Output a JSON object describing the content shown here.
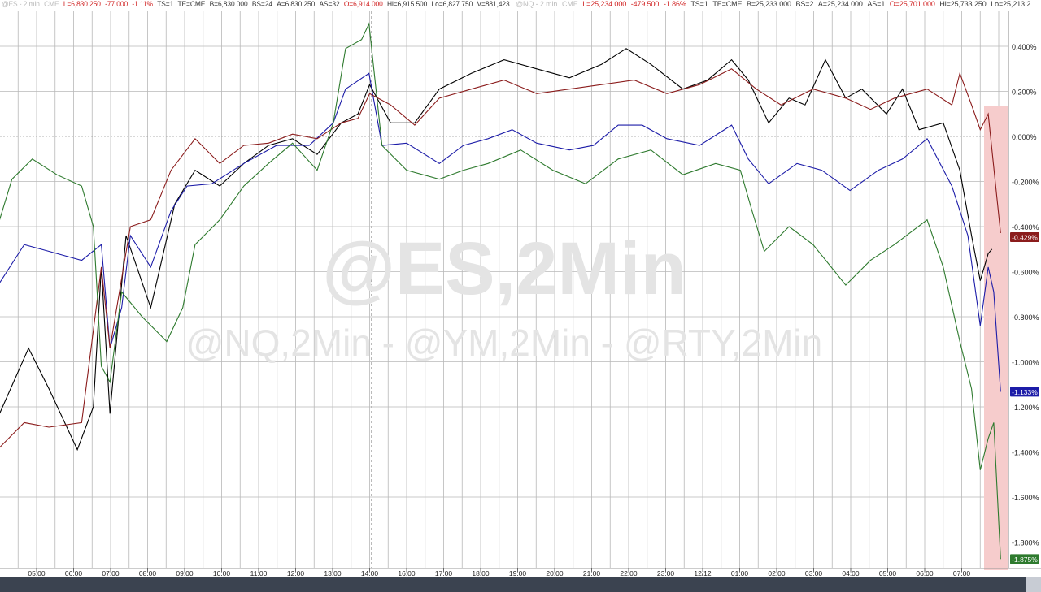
{
  "headers": [
    {
      "symbol": "@ES - 2 min",
      "exchange": "CME",
      "last": "L=6,830.250",
      "change": "-77.000",
      "pct": "-1.11%",
      "ts": "TS=1",
      "te": "TE=CME",
      "bid": "B=6,830.000",
      "bs": "BS=24",
      "ask": "A=6,830.250",
      "as": "AS=32",
      "open": "O=6,914.000",
      "hi": "Hi=6,915.500",
      "lo": "Lo=6,827.750",
      "vol": "V=881,423"
    },
    {
      "symbol": "@NQ - 2 min",
      "exchange": "CME",
      "last": "L=25,234.000",
      "change": "-479.500",
      "pct": "-1.86%",
      "ts": "TS=1",
      "te": "TE=CME",
      "bid": "B=25,233.000",
      "bs": "BS=2",
      "ask": "A=25,234.000",
      "as": "AS=1",
      "open": "O=25,701.000",
      "hi": "Hi=25,733.250",
      "lo": "Lo=25,213.2...",
      "vol": ""
    }
  ],
  "watermark": {
    "main": "@ES,2Min",
    "sub": "@NQ,2Min - @YM,2Min - @RTY,2Min"
  },
  "chart_data": {
    "type": "line",
    "grid": true,
    "y_axis_side": "right",
    "ylim": [
      -1.9,
      0.5
    ],
    "y_ticks": [
      "0.400%",
      "0.200%",
      "0.000%",
      "-0.200%",
      "-0.400%",
      "-0.600%",
      "-0.800%",
      "-1.000%",
      "-1.200%",
      "-1.400%",
      "-1.600%",
      "-1.800%"
    ],
    "x_ticks": [
      "05:00",
      "06:00",
      "07:00",
      "08:00",
      "09:00",
      "10:00",
      "11:00",
      "12:00",
      "13:00",
      "14:00",
      "16:00",
      "17:00",
      "18:00",
      "19:00",
      "20:00",
      "21:00",
      "22:00",
      "23:00",
      "12/12",
      "01:00",
      "02:00",
      "03:00",
      "04:00",
      "05:00",
      "06:00",
      "07:00"
    ],
    "highlight_color": "#f6cccc",
    "series": [
      {
        "color": "#000000",
        "last_label": "",
        "points": [
          [
            "12/11 04:00",
            -1.23
          ],
          [
            "12/11 04:47",
            -0.94
          ],
          [
            "12/11 05:20",
            -1.12
          ],
          [
            "12/11 06:06",
            -1.39
          ],
          [
            "12/11 06:32",
            -1.2
          ],
          [
            "12/11 06:45",
            -0.58
          ],
          [
            "12/11 06:59",
            -1.23
          ],
          [
            "12/11 07:25",
            -0.44
          ],
          [
            "12/11 08:05",
            -0.76
          ],
          [
            "12/11 08:44",
            -0.3
          ],
          [
            "12/11 09:17",
            -0.15
          ],
          [
            "12/11 09:57",
            -0.22
          ],
          [
            "12/11 10:36",
            -0.12
          ],
          [
            "12/11 11:16",
            -0.04
          ],
          [
            "12/11 11:55",
            -0.01
          ],
          [
            "12/11 12:35",
            -0.08
          ],
          [
            "12/11 13:14",
            0.06
          ],
          [
            "12/11 13:41",
            0.1
          ],
          [
            "12/11 14:00",
            0.23
          ],
          [
            "12/11 15:34",
            0.06
          ],
          [
            "12/11 16:13",
            0.06
          ],
          [
            "12/11 16:53",
            0.21
          ],
          [
            "12/11 17:45",
            0.28
          ],
          [
            "12/11 18:38",
            0.34
          ],
          [
            "12/11 19:31",
            0.3
          ],
          [
            "12/11 20:24",
            0.26
          ],
          [
            "12/11 21:16",
            0.32
          ],
          [
            "12/11 21:56",
            0.39
          ],
          [
            "12/11 22:36",
            0.32
          ],
          [
            "12/11 23:28",
            0.21
          ],
          [
            "12/12 00:08",
            0.25
          ],
          [
            "12/12 00:47",
            0.34
          ],
          [
            "12/12 01:14",
            0.25
          ],
          [
            "12/12 01:47",
            0.06
          ],
          [
            "12/12 02:20",
            0.17
          ],
          [
            "12/12 02:46",
            0.14
          ],
          [
            "12/12 03:19",
            0.34
          ],
          [
            "12/12 03:52",
            0.17
          ],
          [
            "12/12 04:18",
            0.21
          ],
          [
            "12/12 04:58",
            0.1
          ],
          [
            "12/12 05:24",
            0.21
          ],
          [
            "12/12 05:51",
            0.03
          ],
          [
            "12/12 06:30",
            0.06
          ],
          [
            "12/12 06:57",
            -0.15
          ],
          [
            "12/12 07:16",
            -0.44
          ],
          [
            "12/12 07:30",
            -0.64
          ],
          [
            "12/12 07:43",
            -0.52
          ],
          [
            "12/12 07:49",
            -0.5
          ]
        ]
      },
      {
        "color": "#1c1ca8",
        "last_label": "-1.133%",
        "points": [
          [
            "12/11 04:00",
            -0.65
          ],
          [
            "12/11 04:40",
            -0.48
          ],
          [
            "12/11 05:20",
            -0.51
          ],
          [
            "12/11 06:13",
            -0.55
          ],
          [
            "12/11 06:45",
            -0.48
          ],
          [
            "12/11 06:59",
            -0.94
          ],
          [
            "12/11 07:18",
            -0.76
          ],
          [
            "12/11 07:32",
            -0.44
          ],
          [
            "12/11 08:05",
            -0.58
          ],
          [
            "12/11 08:38",
            -0.33
          ],
          [
            "12/11 09:04",
            -0.22
          ],
          [
            "12/11 09:44",
            -0.21
          ],
          [
            "12/11 10:36",
            -0.12
          ],
          [
            "12/11 11:29",
            -0.04
          ],
          [
            "12/11 12:22",
            -0.04
          ],
          [
            "12/11 13:01",
            0.06
          ],
          [
            "12/11 13:21",
            0.21
          ],
          [
            "12/11 13:59",
            0.28
          ],
          [
            "12/11 15:20",
            -0.04
          ],
          [
            "12/11 16:00",
            -0.03
          ],
          [
            "12/11 16:53",
            -0.12
          ],
          [
            "12/11 17:32",
            -0.04
          ],
          [
            "12/11 18:12",
            -0.01
          ],
          [
            "12/11 18:51",
            0.03
          ],
          [
            "12/11 19:31",
            -0.03
          ],
          [
            "12/11 20:24",
            -0.06
          ],
          [
            "12/11 21:03",
            -0.04
          ],
          [
            "12/11 21:43",
            0.05
          ],
          [
            "12/11 22:22",
            0.05
          ],
          [
            "12/11 23:02",
            -0.01
          ],
          [
            "12/11 23:55",
            -0.04
          ],
          [
            "12/12 00:47",
            0.05
          ],
          [
            "12/12 01:14",
            -0.1
          ],
          [
            "12/12 01:47",
            -0.21
          ],
          [
            "12/12 02:33",
            -0.12
          ],
          [
            "12/12 03:13",
            -0.15
          ],
          [
            "12/12 03:59",
            -0.24
          ],
          [
            "12/12 04:45",
            -0.15
          ],
          [
            "12/12 05:24",
            -0.1
          ],
          [
            "12/12 06:04",
            -0.01
          ],
          [
            "12/12 06:44",
            -0.22
          ],
          [
            "12/12 07:10",
            -0.44
          ],
          [
            "12/12 07:30",
            -0.84
          ],
          [
            "12/12 07:43",
            -0.58
          ],
          [
            "12/12 07:52",
            -0.69
          ],
          [
            "12/12 08:03",
            -1.133
          ]
        ]
      },
      {
        "color": "#8b1c1c",
        "last_label": "-0.429%",
        "points": [
          [
            "12/11 04:00",
            -1.38
          ],
          [
            "12/11 04:40",
            -1.27
          ],
          [
            "12/11 05:20",
            -1.29
          ],
          [
            "12/11 06:13",
            -1.27
          ],
          [
            "12/11 06:45",
            -0.58
          ],
          [
            "12/11 06:59",
            -0.94
          ],
          [
            "12/11 07:32",
            -0.4
          ],
          [
            "12/11 08:05",
            -0.37
          ],
          [
            "12/11 08:38",
            -0.15
          ],
          [
            "12/11 09:17",
            -0.01
          ],
          [
            "12/11 09:57",
            -0.12
          ],
          [
            "12/11 10:36",
            -0.04
          ],
          [
            "12/11 11:16",
            -0.03
          ],
          [
            "12/11 11:55",
            0.01
          ],
          [
            "12/11 12:35",
            -0.01
          ],
          [
            "12/11 13:14",
            0.06
          ],
          [
            "12/11 13:41",
            0.08
          ],
          [
            "12/11 14:00",
            0.19
          ],
          [
            "12/11 15:34",
            0.14
          ],
          [
            "12/11 16:13",
            0.05
          ],
          [
            "12/11 16:53",
            0.17
          ],
          [
            "12/11 17:45",
            0.21
          ],
          [
            "12/11 18:38",
            0.25
          ],
          [
            "12/11 19:31",
            0.19
          ],
          [
            "12/11 20:24",
            0.21
          ],
          [
            "12/11 21:16",
            0.23
          ],
          [
            "12/11 22:09",
            0.25
          ],
          [
            "12/11 23:02",
            0.19
          ],
          [
            "12/11 23:55",
            0.23
          ],
          [
            "12/12 00:47",
            0.3
          ],
          [
            "12/12 01:27",
            0.21
          ],
          [
            "12/12 02:07",
            0.14
          ],
          [
            "12/12 02:59",
            0.21
          ],
          [
            "12/12 03:52",
            0.17
          ],
          [
            "12/12 04:32",
            0.12
          ],
          [
            "12/12 05:11",
            0.17
          ],
          [
            "12/12 06:04",
            0.21
          ],
          [
            "12/12 06:44",
            0.14
          ],
          [
            "12/12 06:57",
            0.28
          ],
          [
            "12/12 07:16",
            0.14
          ],
          [
            "12/12 07:30",
            0.03
          ],
          [
            "12/12 07:43",
            0.1
          ],
          [
            "12/12 08:03",
            -0.429
          ]
        ]
      },
      {
        "color": "#2e7a2e",
        "last_label": "-1.875%",
        "points": [
          [
            "12/11 04:00",
            -0.37
          ],
          [
            "12/11 04:20",
            -0.19
          ],
          [
            "12/11 04:53",
            -0.1
          ],
          [
            "12/11 05:33",
            -0.17
          ],
          [
            "12/11 06:13",
            -0.22
          ],
          [
            "12/11 06:32",
            -0.4
          ],
          [
            "12/11 06:45",
            -1.02
          ],
          [
            "12/11 06:59",
            -1.09
          ],
          [
            "12/11 07:18",
            -0.69
          ],
          [
            "12/11 07:51",
            -0.8
          ],
          [
            "12/11 08:31",
            -0.91
          ],
          [
            "12/11 08:57",
            -0.76
          ],
          [
            "12/11 09:17",
            -0.48
          ],
          [
            "12/11 09:57",
            -0.37
          ],
          [
            "12/11 10:36",
            -0.22
          ],
          [
            "12/11 11:16",
            -0.12
          ],
          [
            "12/11 11:55",
            -0.03
          ],
          [
            "12/11 12:35",
            -0.15
          ],
          [
            "12/11 13:01",
            0.06
          ],
          [
            "12/11 13:21",
            0.39
          ],
          [
            "12/11 13:47",
            0.43
          ],
          [
            "12/11 13:59",
            0.5
          ],
          [
            "12/11 15:20",
            -0.04
          ],
          [
            "12/11 16:00",
            -0.15
          ],
          [
            "12/11 16:53",
            -0.19
          ],
          [
            "12/11 17:32",
            -0.15
          ],
          [
            "12/11 18:12",
            -0.12
          ],
          [
            "12/11 19:05",
            -0.06
          ],
          [
            "12/11 19:57",
            -0.15
          ],
          [
            "12/11 20:50",
            -0.21
          ],
          [
            "12/11 21:43",
            -0.1
          ],
          [
            "12/11 22:36",
            -0.06
          ],
          [
            "12/11 23:28",
            -0.17
          ],
          [
            "12/12 00:21",
            -0.12
          ],
          [
            "12/12 01:01",
            -0.15
          ],
          [
            "12/12 01:20",
            -0.33
          ],
          [
            "12/12 01:40",
            -0.51
          ],
          [
            "12/12 02:20",
            -0.4
          ],
          [
            "12/12 02:59",
            -0.48
          ],
          [
            "12/12 03:52",
            -0.66
          ],
          [
            "12/12 04:32",
            -0.55
          ],
          [
            "12/12 05:11",
            -0.48
          ],
          [
            "12/12 06:04",
            -0.37
          ],
          [
            "12/12 06:30",
            -0.58
          ],
          [
            "12/12 06:57",
            -0.91
          ],
          [
            "12/12 07:16",
            -1.12
          ],
          [
            "12/12 07:30",
            -1.48
          ],
          [
            "12/12 07:43",
            -1.34
          ],
          [
            "12/12 07:52",
            -1.27
          ],
          [
            "12/12 08:03",
            -1.875
          ]
        ]
      }
    ]
  }
}
